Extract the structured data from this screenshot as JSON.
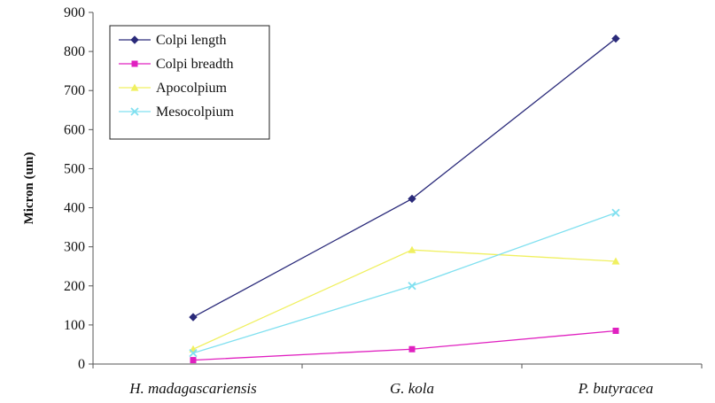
{
  "chart_data": {
    "type": "line",
    "ylabel": "Micron (um)",
    "xlabel": "",
    "ylim": [
      0,
      900
    ],
    "yticks": [
      0,
      100,
      200,
      300,
      400,
      500,
      600,
      700,
      800,
      900
    ],
    "categories": [
      "H. madagascariensis",
      "G. kola",
      "P. butyracea"
    ],
    "series": [
      {
        "name": "Colpi length",
        "values": [
          120,
          423,
          833
        ],
        "color": "#2a2a7a",
        "marker": "diamond"
      },
      {
        "name": "Colpi breadth",
        "values": [
          10,
          38,
          85
        ],
        "color": "#e020c0",
        "marker": "square"
      },
      {
        "name": "Apocolpium",
        "values": [
          38,
          292,
          263
        ],
        "color": "#f0f060",
        "marker": "triangle"
      },
      {
        "name": "Mesocolpium",
        "values": [
          28,
          200,
          387
        ],
        "color": "#80e0f0",
        "marker": "x"
      }
    ],
    "legend_position": "top-left",
    "grid": false
  }
}
